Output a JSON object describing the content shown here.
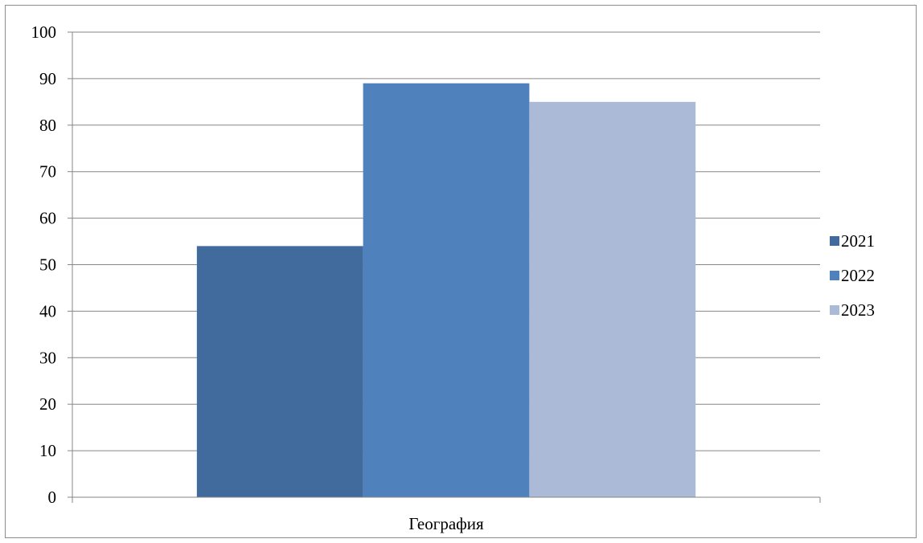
{
  "chart_data": {
    "type": "bar",
    "categories": [
      "География"
    ],
    "series": [
      {
        "name": "2021",
        "values": [
          54
        ],
        "color": "#416b9d"
      },
      {
        "name": "2022",
        "values": [
          89
        ],
        "color": "#4f81bd"
      },
      {
        "name": "2023",
        "values": [
          85
        ],
        "color": "#aabad7"
      }
    ],
    "ylim": [
      0,
      100
    ],
    "yticks": [
      0,
      10,
      20,
      30,
      40,
      50,
      60,
      70,
      80,
      90,
      100
    ],
    "grid": true,
    "gridline_color": "#868686",
    "legend_position": "right"
  }
}
